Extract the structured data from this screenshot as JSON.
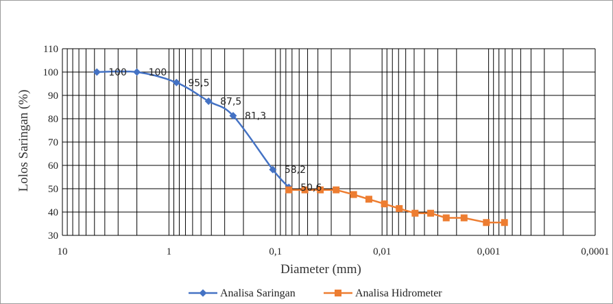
{
  "chart_data": {
    "type": "line",
    "xlabel": "Diameter (mm)",
    "ylabel": "Lolos Saringan (%)",
    "x_scale": "log",
    "x_reversed": true,
    "xlim": [
      10,
      0.0001
    ],
    "ylim": [
      30,
      110
    ],
    "x_tick_labels": [
      "10",
      "1",
      "0,1",
      "0,01",
      "0,001",
      "0,0001"
    ],
    "y_ticks": [
      30,
      40,
      50,
      60,
      70,
      80,
      90,
      100,
      110
    ],
    "grid": true,
    "legend_position": "bottom",
    "series": [
      {
        "name": "Analisa Saringan",
        "color": "#4472c4",
        "marker": "diamond",
        "x": [
          4.75,
          2.0,
          0.85,
          0.425,
          0.25,
          0.106,
          0.075
        ],
        "y": [
          100,
          100,
          95.5,
          87.5,
          81.3,
          58.2,
          50.6
        ],
        "labels": [
          "100",
          "100",
          "95,5",
          "87,5",
          "81,3",
          "58,2",
          "50,6"
        ]
      },
      {
        "name": "Analisa Hidrometer",
        "color": "#ed7d31",
        "marker": "square",
        "x": [
          0.075,
          0.053,
          0.038,
          0.027,
          0.0185,
          0.0133,
          0.0095,
          0.0069,
          0.0049,
          0.0035,
          0.0025,
          0.0017,
          0.00105,
          0.00071
        ],
        "y": [
          49.5,
          49.5,
          49.5,
          49.5,
          47.5,
          45.5,
          43.5,
          41.5,
          39.5,
          39.5,
          37.5,
          37.5,
          35.5,
          35.5
        ]
      }
    ]
  }
}
